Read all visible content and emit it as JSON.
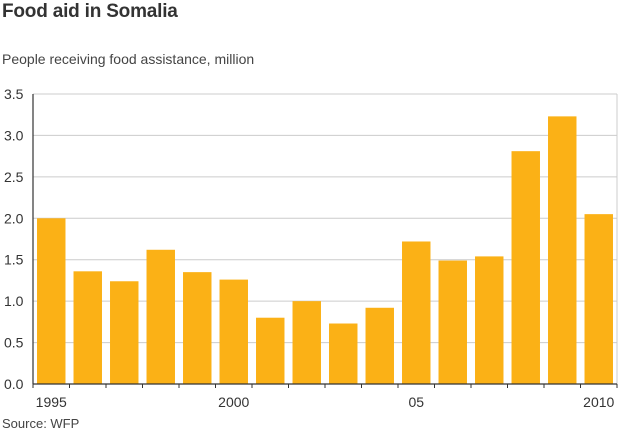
{
  "chart_data": {
    "type": "bar",
    "title": "Food aid in Somalia",
    "subtitle": "People receiving food assistance, million",
    "source": "Source:  WFP",
    "xlabel": "",
    "ylabel": "People receiving food assistance, million",
    "ylim": [
      0,
      3.5
    ],
    "yticks": [
      "0.0",
      "0.5",
      "1.0",
      "1.5",
      "2.0",
      "2.5",
      "3.0",
      "3.5"
    ],
    "ytick_values": [
      0,
      0.5,
      1.0,
      1.5,
      2.0,
      2.5,
      3.0,
      3.5
    ],
    "categories": [
      "1995",
      "1996",
      "1997",
      "1998",
      "1999",
      "2000",
      "2001",
      "2002",
      "2003",
      "2004",
      "2005",
      "2006",
      "2007",
      "2008",
      "2009",
      "2010"
    ],
    "x_tick_labels": [
      {
        "category_index": 0,
        "label": "1995"
      },
      {
        "category_index": 5,
        "label": "2000"
      },
      {
        "category_index": 10,
        "label": "05"
      },
      {
        "category_index": 15,
        "label": "2010"
      }
    ],
    "values": [
      2.0,
      1.36,
      1.24,
      1.62,
      1.35,
      1.26,
      0.8,
      1.0,
      0.73,
      0.92,
      1.72,
      1.49,
      1.54,
      2.81,
      3.23,
      2.05
    ],
    "grid": true,
    "bar_color": "#fbb116",
    "grid_color": "#cccccc",
    "axis_color": "#333333"
  }
}
